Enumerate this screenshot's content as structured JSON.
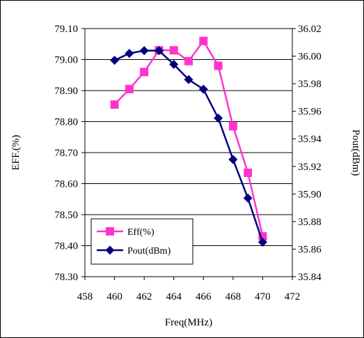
{
  "chart_data": {
    "type": "line",
    "title": "",
    "xlabel": "Freq(MHz)",
    "ylabel": "EFF.(%)",
    "y2label": "Pout(dBm)",
    "xlim": [
      458,
      472
    ],
    "xticks": [
      "458",
      "460",
      "462",
      "464",
      "466",
      "468",
      "470",
      "472"
    ],
    "ylim": [
      78.3,
      79.1
    ],
    "yticks": [
      "78.30",
      "78.40",
      "78.50",
      "78.60",
      "78.70",
      "78.80",
      "78.90",
      "79.00",
      "79.10"
    ],
    "y2lim": [
      35.84,
      36.02
    ],
    "y2ticks": [
      "35.84",
      "35.86",
      "35.88",
      "35.90",
      "35.92",
      "35.94",
      "35.96",
      "35.98",
      "36.00",
      "36.02"
    ],
    "grid": true,
    "legend_position": "lower-left",
    "x": [
      460,
      461,
      462,
      463,
      464,
      465,
      466,
      467,
      468,
      469,
      470
    ],
    "series": [
      {
        "name": "Eff(%)",
        "axis": "left",
        "color": "#ff33cc",
        "marker": "square",
        "values": [
          78.855,
          78.905,
          78.96,
          79.03,
          79.03,
          78.995,
          79.06,
          78.98,
          78.785,
          78.635,
          78.43
        ]
      },
      {
        "name": "Pout(dBm)",
        "axis": "right",
        "color": "#000080",
        "marker": "diamond",
        "values": [
          35.997,
          36.002,
          36.004,
          36.004,
          35.994,
          35.983,
          35.976,
          35.955,
          35.925,
          35.897,
          35.865
        ]
      }
    ]
  }
}
